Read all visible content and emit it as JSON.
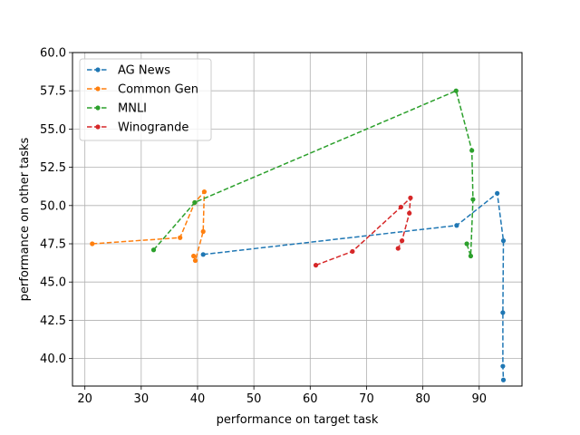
{
  "chart_data": {
    "type": "line",
    "title": "",
    "xlabel": "performance on target task",
    "ylabel": "performance on other tasks",
    "xlim": [
      17.8,
      97.6
    ],
    "ylim": [
      38.2,
      60.0
    ],
    "xticks": [
      20,
      30,
      40,
      50,
      60,
      70,
      80,
      90
    ],
    "yticks": [
      40.0,
      42.5,
      45.0,
      47.5,
      50.0,
      52.5,
      55.0,
      57.5,
      60.0
    ],
    "grid": true,
    "legend_position": "top-left",
    "line_style": "dashed",
    "marker": "circle",
    "series": [
      {
        "name": "AG News",
        "color": "#1f77b4",
        "x": [
          41.0,
          86.0,
          93.2,
          94.3,
          94.2,
          94.2,
          94.3
        ],
        "y": [
          46.8,
          48.7,
          50.8,
          47.7,
          43.0,
          39.5,
          38.6
        ]
      },
      {
        "name": "Common Gen",
        "color": "#ff7f0e",
        "x": [
          21.3,
          36.9,
          39.5,
          41.2,
          41.0,
          39.6,
          39.3
        ],
        "y": [
          47.5,
          47.9,
          50.2,
          50.9,
          48.3,
          46.4,
          46.7
        ]
      },
      {
        "name": "MNLI",
        "color": "#2ca02c",
        "x": [
          32.2,
          39.5,
          85.9,
          88.7,
          88.9,
          88.5,
          87.8
        ],
        "y": [
          47.1,
          50.2,
          57.5,
          53.6,
          50.4,
          46.7,
          47.5
        ]
      },
      {
        "name": "Winogrande",
        "color": "#d62728",
        "x": [
          61.0,
          67.5,
          76.1,
          77.8,
          77.6,
          76.3,
          75.6
        ],
        "y": [
          46.1,
          47.0,
          49.9,
          50.5,
          49.5,
          47.7,
          47.2
        ]
      }
    ]
  }
}
